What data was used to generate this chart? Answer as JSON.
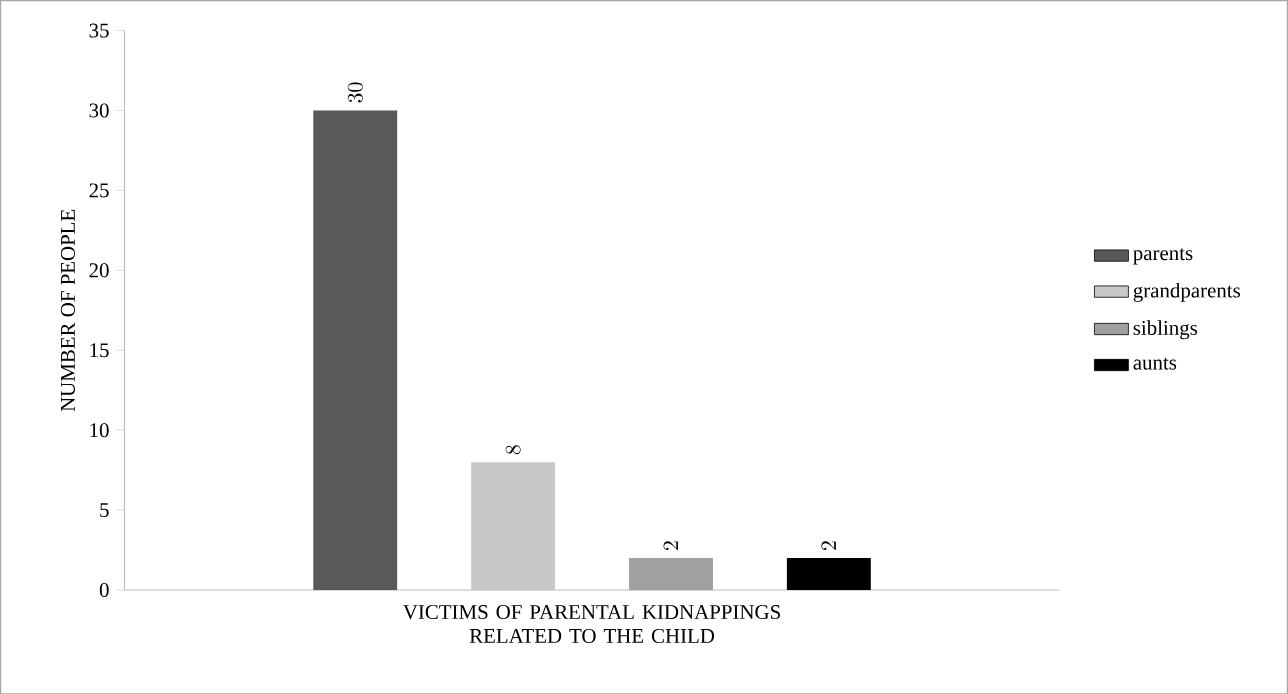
{
  "chart_data": {
    "type": "bar",
    "categories": [
      "VICTIMS OF PARENTAL KIDNAPPINGS RELATED TO THE CHILD"
    ],
    "ylabel": "NUMBER OF PEOPLE",
    "series": [
      {
        "name": "parents",
        "color": "#595959",
        "values": [
          30
        ]
      },
      {
        "name": "grandparents",
        "color": "#c8c8c8",
        "values": [
          8
        ]
      },
      {
        "name": "siblings",
        "color": "#a0a0a0",
        "values": [
          2
        ]
      },
      {
        "name": "aunts",
        "color": "#000000",
        "values": [
          2
        ]
      }
    ],
    "ylim": [
      0,
      35
    ],
    "yticks": [
      0,
      5,
      10,
      15,
      20,
      25,
      30,
      35
    ],
    "data_labels": true,
    "legend": "right",
    "grid": false
  }
}
